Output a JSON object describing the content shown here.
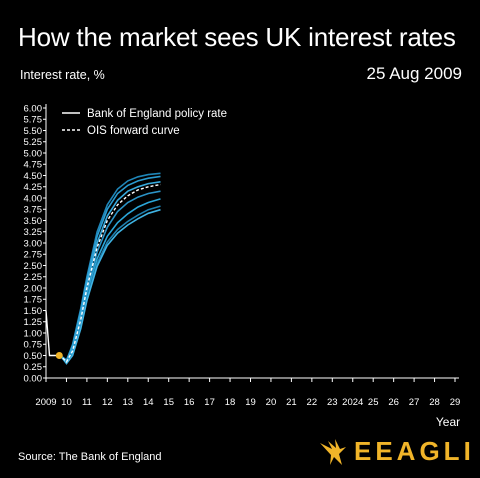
{
  "title": "How the market sees UK interest rates",
  "date": "25 Aug 2009",
  "source": "Source: The Bank of England",
  "logo": {
    "text": "EEAGLI",
    "icon": "eagle-icon",
    "color": "#f0b429"
  },
  "chart_data": {
    "type": "line",
    "title": "How the market sees UK interest rates",
    "ylabel": "Interest rate, %",
    "xlabel": "Year",
    "ylim": [
      0,
      6
    ],
    "xlim": [
      2009,
      2029
    ],
    "y_ticks": [
      "0.00",
      "0.25",
      "0.50",
      "0.75",
      "1.00",
      "1.25",
      "1.50",
      "1.75",
      "2.00",
      "2.25",
      "2.50",
      "2.75",
      "3.00",
      "3.25",
      "3.50",
      "3.75",
      "4.00",
      "4.25",
      "4.50",
      "4.75",
      "5.00",
      "5.25",
      "5.50",
      "5.75",
      "6.00"
    ],
    "x_ticks": [
      {
        "value": 2009,
        "label": "2009"
      },
      {
        "value": 2010,
        "label": "10"
      },
      {
        "value": 2011,
        "label": "11"
      },
      {
        "value": 2012,
        "label": "12"
      },
      {
        "value": 2013,
        "label": "13"
      },
      {
        "value": 2014,
        "label": "14"
      },
      {
        "value": 2015,
        "label": "15"
      },
      {
        "value": 2016,
        "label": "16"
      },
      {
        "value": 2017,
        "label": "17"
      },
      {
        "value": 2018,
        "label": "18"
      },
      {
        "value": 2019,
        "label": "19"
      },
      {
        "value": 2020,
        "label": "20"
      },
      {
        "value": 2021,
        "label": "21"
      },
      {
        "value": 2022,
        "label": "22"
      },
      {
        "value": 2023,
        "label": "23"
      },
      {
        "value": 2024,
        "label": "2024"
      },
      {
        "value": 2025,
        "label": "25"
      },
      {
        "value": 2026,
        "label": "26"
      },
      {
        "value": 2027,
        "label": "27"
      },
      {
        "value": 2028,
        "label": "28"
      },
      {
        "value": 2029,
        "label": "29"
      }
    ],
    "legend": {
      "position": "top-left",
      "entries": [
        "Bank of England policy rate",
        "OIS forward curve"
      ]
    },
    "colors": {
      "policy_rate": "#ffffff",
      "forward_curves": "#2fa8d8",
      "ois": "#ffffff",
      "marker": "#f0b429"
    },
    "policy_rate": [
      [
        2009.0,
        1.5
      ],
      [
        2009.17,
        0.5
      ],
      [
        2009.65,
        0.5
      ]
    ],
    "marker_point": [
      2009.65,
      0.5
    ],
    "ois_forward_curve": [
      [
        2009.65,
        0.52
      ],
      [
        2010.0,
        0.36
      ],
      [
        2010.3,
        0.6
      ],
      [
        2010.7,
        1.3
      ],
      [
        2011.0,
        2.0
      ],
      [
        2011.5,
        2.9
      ],
      [
        2012.0,
        3.5
      ],
      [
        2012.5,
        3.85
      ],
      [
        2013.0,
        4.05
      ],
      [
        2013.5,
        4.18
      ],
      [
        2014.0,
        4.25
      ],
      [
        2014.6,
        4.3
      ]
    ],
    "forward_curves": [
      [
        [
          2009.7,
          0.5
        ],
        [
          2010.0,
          0.38
        ],
        [
          2010.3,
          0.75
        ],
        [
          2010.7,
          1.55
        ],
        [
          2011.0,
          2.25
        ],
        [
          2011.5,
          3.25
        ],
        [
          2012.0,
          3.85
        ],
        [
          2012.5,
          4.2
        ],
        [
          2013.0,
          4.38
        ],
        [
          2013.5,
          4.47
        ],
        [
          2014.0,
          4.52
        ],
        [
          2014.6,
          4.55
        ]
      ],
      [
        [
          2009.7,
          0.5
        ],
        [
          2010.0,
          0.4
        ],
        [
          2010.3,
          0.72
        ],
        [
          2010.7,
          1.5
        ],
        [
          2011.0,
          2.2
        ],
        [
          2011.5,
          3.15
        ],
        [
          2012.0,
          3.75
        ],
        [
          2012.5,
          4.1
        ],
        [
          2013.0,
          4.28
        ],
        [
          2013.5,
          4.38
        ],
        [
          2014.0,
          4.44
        ],
        [
          2014.6,
          4.48
        ]
      ],
      [
        [
          2009.7,
          0.5
        ],
        [
          2010.0,
          0.37
        ],
        [
          2010.3,
          0.65
        ],
        [
          2010.7,
          1.4
        ],
        [
          2011.0,
          2.1
        ],
        [
          2011.5,
          3.0
        ],
        [
          2012.0,
          3.6
        ],
        [
          2012.5,
          3.95
        ],
        [
          2013.0,
          4.15
        ],
        [
          2013.5,
          4.25
        ],
        [
          2014.0,
          4.32
        ],
        [
          2014.6,
          4.36
        ]
      ],
      [
        [
          2009.7,
          0.5
        ],
        [
          2010.0,
          0.35
        ],
        [
          2010.3,
          0.6
        ],
        [
          2010.7,
          1.3
        ],
        [
          2011.0,
          1.95
        ],
        [
          2011.5,
          2.8
        ],
        [
          2012.0,
          3.35
        ],
        [
          2012.5,
          3.7
        ],
        [
          2013.0,
          3.9
        ],
        [
          2013.5,
          4.02
        ],
        [
          2014.0,
          4.1
        ],
        [
          2014.6,
          4.15
        ]
      ],
      [
        [
          2009.7,
          0.5
        ],
        [
          2010.0,
          0.34
        ],
        [
          2010.3,
          0.55
        ],
        [
          2010.7,
          1.2
        ],
        [
          2011.0,
          1.85
        ],
        [
          2011.5,
          2.65
        ],
        [
          2012.0,
          3.15
        ],
        [
          2012.5,
          3.45
        ],
        [
          2013.0,
          3.65
        ],
        [
          2013.5,
          3.8
        ],
        [
          2014.0,
          3.9
        ],
        [
          2014.6,
          3.98
        ]
      ],
      [
        [
          2009.7,
          0.5
        ],
        [
          2010.0,
          0.33
        ],
        [
          2010.3,
          0.52
        ],
        [
          2010.7,
          1.15
        ],
        [
          2011.0,
          1.78
        ],
        [
          2011.5,
          2.55
        ],
        [
          2012.0,
          3.02
        ],
        [
          2012.5,
          3.3
        ],
        [
          2013.0,
          3.48
        ],
        [
          2013.5,
          3.62
        ],
        [
          2014.0,
          3.74
        ],
        [
          2014.6,
          3.82
        ]
      ],
      [
        [
          2009.7,
          0.5
        ],
        [
          2010.0,
          0.32
        ],
        [
          2010.3,
          0.5
        ],
        [
          2010.7,
          1.1
        ],
        [
          2011.0,
          1.72
        ],
        [
          2011.5,
          2.48
        ],
        [
          2012.0,
          2.95
        ],
        [
          2012.5,
          3.22
        ],
        [
          2013.0,
          3.4
        ],
        [
          2013.5,
          3.54
        ],
        [
          2014.0,
          3.66
        ],
        [
          2014.6,
          3.74
        ]
      ]
    ]
  }
}
